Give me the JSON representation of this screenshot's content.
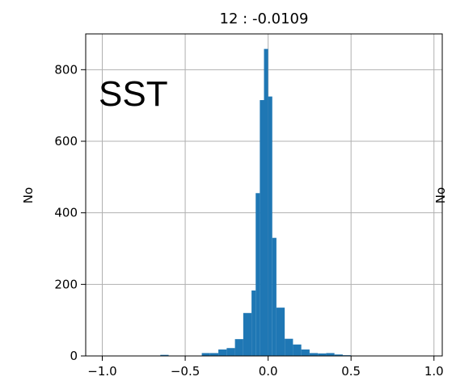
{
  "chart_data": {
    "type": "bar",
    "title": "12 : -0.0109",
    "xlabel": "",
    "ylabel": "No",
    "ylabel_right": "No",
    "annotation": "SST",
    "xlim": [
      -1.1,
      1.05
    ],
    "ylim": [
      0,
      900
    ],
    "x_ticks": [
      -1.0,
      -0.5,
      0.0,
      0.5,
      1.0
    ],
    "x_tick_labels": [
      "−1.0",
      "−0.5",
      "0.0",
      "0.5",
      "1.0"
    ],
    "y_ticks": [
      0,
      200,
      400,
      600,
      800
    ],
    "y_tick_labels": [
      "0",
      "200",
      "400",
      "600",
      "800"
    ],
    "grid": true,
    "bar_color": "#1f77b4",
    "bins": [
      {
        "x0": -0.65,
        "x1": -0.6,
        "value": 3
      },
      {
        "x0": -0.4,
        "x1": -0.35,
        "value": 8
      },
      {
        "x0": -0.35,
        "x1": -0.3,
        "value": 8
      },
      {
        "x0": -0.3,
        "x1": -0.25,
        "value": 18
      },
      {
        "x0": -0.25,
        "x1": -0.2,
        "value": 22
      },
      {
        "x0": -0.2,
        "x1": -0.15,
        "value": 47
      },
      {
        "x0": -0.15,
        "x1": -0.1,
        "value": 120
      },
      {
        "x0": -0.1,
        "x1": -0.075,
        "value": 183
      },
      {
        "x0": -0.075,
        "x1": -0.05,
        "value": 455
      },
      {
        "x0": -0.05,
        "x1": -0.025,
        "value": 715
      },
      {
        "x0": -0.025,
        "x1": 0.0,
        "value": 858
      },
      {
        "x0": 0.0,
        "x1": 0.025,
        "value": 725
      },
      {
        "x0": 0.025,
        "x1": 0.05,
        "value": 330
      },
      {
        "x0": 0.05,
        "x1": 0.1,
        "value": 135
      },
      {
        "x0": 0.1,
        "x1": 0.15,
        "value": 48
      },
      {
        "x0": 0.15,
        "x1": 0.2,
        "value": 32
      },
      {
        "x0": 0.2,
        "x1": 0.25,
        "value": 18
      },
      {
        "x0": 0.25,
        "x1": 0.3,
        "value": 8
      },
      {
        "x0": 0.3,
        "x1": 0.35,
        "value": 7
      },
      {
        "x0": 0.35,
        "x1": 0.4,
        "value": 8
      },
      {
        "x0": 0.4,
        "x1": 0.45,
        "value": 4
      },
      {
        "x0": 0.45,
        "x1": 0.5,
        "value": 2
      }
    ]
  }
}
